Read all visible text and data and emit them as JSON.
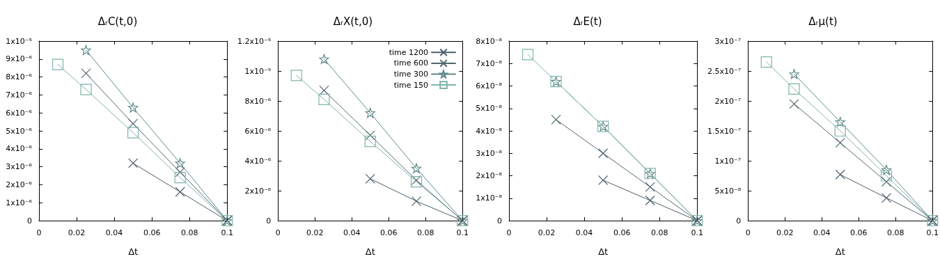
{
  "chart_data": [
    {
      "type": "line",
      "title": "ΔᵣC(t,0)",
      "xlabel": "Δt",
      "xlim": [
        0,
        0.1
      ],
      "xticks": [
        0,
        0.02,
        0.04,
        0.06,
        0.08,
        0.1
      ],
      "ylim": [
        0,
        1e-05
      ],
      "yticks": [
        {
          "value": 0,
          "label": "0"
        },
        {
          "value": 1e-06,
          "label": "1x10⁻⁶"
        },
        {
          "value": 2e-06,
          "label": "2x10⁻⁶"
        },
        {
          "value": 3e-06,
          "label": "3x10⁻⁶"
        },
        {
          "value": 4e-06,
          "label": "4x10⁻⁶"
        },
        {
          "value": 5e-06,
          "label": "5x10⁻⁶"
        },
        {
          "value": 6e-06,
          "label": "6x10⁻⁶"
        },
        {
          "value": 7e-06,
          "label": "7x10⁻⁶"
        },
        {
          "value": 8e-06,
          "label": "8x10⁻⁶"
        },
        {
          "value": 9e-06,
          "label": "9x10⁻⁶"
        },
        {
          "value": 1e-05,
          "label": "1x10⁻⁵"
        }
      ],
      "grid": false,
      "series": [
        {
          "color": "#4b5d67",
          "marker": "cross",
          "x": [
            0.05,
            0.075,
            0.1
          ],
          "values": [
            3.2e-06,
            1.6e-06,
            0
          ]
        },
        {
          "color": "#52666e",
          "marker": "cross",
          "x": [
            0.025,
            0.05,
            0.075,
            0.1
          ],
          "values": [
            8.2e-06,
            5.4e-06,
            2.7e-06,
            0
          ]
        },
        {
          "color": "#5e8a88",
          "marker": "star",
          "x": [
            0.025,
            0.05,
            0.075,
            0.1
          ],
          "values": [
            9.5e-06,
            6.3e-06,
            3.2e-06,
            0
          ]
        },
        {
          "color": "#7fb3a9",
          "marker": "square",
          "x": [
            0.01,
            0.025,
            0.05,
            0.075,
            0.1
          ],
          "values": [
            8.7e-06,
            7.3e-06,
            4.9e-06,
            2.4e-06,
            0
          ]
        }
      ]
    },
    {
      "type": "line",
      "title": "ΔᵣX(t,0)",
      "xlabel": "Δt",
      "xlim": [
        0,
        0.1
      ],
      "xticks": [
        0,
        0.02,
        0.04,
        0.06,
        0.08,
        0.1
      ],
      "ylim": [
        0,
        1.2e-05
      ],
      "yticks": [
        {
          "value": 0,
          "label": "0"
        },
        {
          "value": 2e-06,
          "label": "2x10⁻⁶"
        },
        {
          "value": 4e-06,
          "label": "4x10⁻⁶"
        },
        {
          "value": 6e-06,
          "label": "6x10⁻⁶"
        },
        {
          "value": 8e-06,
          "label": "8x10⁻⁶"
        },
        {
          "value": 1e-05,
          "label": "1x10⁻⁵"
        },
        {
          "value": 1.2e-05,
          "label": "1.2x10⁻⁵"
        }
      ],
      "grid": false,
      "legend": "top right",
      "series": [
        {
          "name": "time 1200",
          "color": "#4b5d67",
          "marker": "cross",
          "x": [
            0.05,
            0.075,
            0.1
          ],
          "values": [
            2.8e-06,
            1.3e-06,
            0
          ]
        },
        {
          "name": "time 600",
          "color": "#52666e",
          "marker": "cross",
          "x": [
            0.025,
            0.05,
            0.075,
            0.1
          ],
          "values": [
            8.7e-06,
            5.7e-06,
            2.7e-06,
            0
          ]
        },
        {
          "name": "time 300",
          "color": "#5e8a88",
          "marker": "star",
          "x": [
            0.025,
            0.05,
            0.075,
            0.1
          ],
          "values": [
            1.08e-05,
            7.2e-06,
            3.5e-06,
            0
          ]
        },
        {
          "name": "time 150",
          "color": "#7fb3a9",
          "marker": "square",
          "x": [
            0.01,
            0.025,
            0.05,
            0.075,
            0.1
          ],
          "values": [
            9.7e-06,
            8.1e-06,
            5.3e-06,
            2.6e-06,
            0
          ]
        }
      ]
    },
    {
      "type": "line",
      "title": "ΔᵣE(t)",
      "xlabel": "Δt",
      "xlim": [
        0,
        0.1
      ],
      "xticks": [
        0,
        0.02,
        0.04,
        0.06,
        0.08,
        0.1
      ],
      "ylim": [
        0,
        8e-08
      ],
      "yticks": [
        {
          "value": 0,
          "label": "0"
        },
        {
          "value": 1e-08,
          "label": "1x10⁻⁸"
        },
        {
          "value": 2e-08,
          "label": "2x10⁻⁸"
        },
        {
          "value": 3e-08,
          "label": "3x10⁻⁸"
        },
        {
          "value": 4e-08,
          "label": "4x10⁻⁸"
        },
        {
          "value": 5e-08,
          "label": "5x10⁻⁸"
        },
        {
          "value": 6e-08,
          "label": "6x10⁻⁸"
        },
        {
          "value": 7e-08,
          "label": "7x10⁻⁸"
        },
        {
          "value": 8e-08,
          "label": "8x10⁻⁸"
        }
      ],
      "grid": false,
      "series": [
        {
          "color": "#4b5d67",
          "marker": "cross",
          "x": [
            0.05,
            0.075,
            0.1
          ],
          "values": [
            1.8e-08,
            9e-09,
            0
          ]
        },
        {
          "color": "#52666e",
          "marker": "cross",
          "x": [
            0.025,
            0.05,
            0.075,
            0.1
          ],
          "values": [
            4.5e-08,
            3e-08,
            1.5e-08,
            0
          ]
        },
        {
          "color": "#5e8a88",
          "marker": "star",
          "x": [
            0.025,
            0.05,
            0.075,
            0.1
          ],
          "values": [
            6.2e-08,
            4.2e-08,
            2.1e-08,
            0
          ]
        },
        {
          "color": "#7fb3a9",
          "marker": "square",
          "x": [
            0.01,
            0.025,
            0.05,
            0.075,
            0.1
          ],
          "values": [
            7.4e-08,
            6.2e-08,
            4.2e-08,
            2.1e-08,
            0
          ]
        }
      ]
    },
    {
      "type": "line",
      "title": "Δᵣμ(t)",
      "xlabel": "Δt",
      "xlim": [
        0,
        0.1
      ],
      "xticks": [
        0,
        0.02,
        0.04,
        0.06,
        0.08,
        0.1
      ],
      "ylim": [
        0,
        3e-07
      ],
      "yticks": [
        {
          "value": 0,
          "label": "0"
        },
        {
          "value": 5e-08,
          "label": "5x10⁻⁸"
        },
        {
          "value": 1e-07,
          "label": "1x10⁻⁷"
        },
        {
          "value": 1.5e-07,
          "label": "1.5x10⁻⁷"
        },
        {
          "value": 2e-07,
          "label": "2x10⁻⁷"
        },
        {
          "value": 2.5e-07,
          "label": "2.5x10⁻⁷"
        },
        {
          "value": 3e-07,
          "label": "3x10⁻⁷"
        }
      ],
      "grid": false,
      "series": [
        {
          "color": "#4b5d67",
          "marker": "cross",
          "x": [
            0.05,
            0.075,
            0.1
          ],
          "values": [
            7.7e-08,
            3.8e-08,
            0
          ]
        },
        {
          "color": "#52666e",
          "marker": "cross",
          "x": [
            0.025,
            0.05,
            0.075,
            0.1
          ],
          "values": [
            1.95e-07,
            1.3e-07,
            6.5e-08,
            0
          ]
        },
        {
          "color": "#5e8a88",
          "marker": "star",
          "x": [
            0.025,
            0.05,
            0.075,
            0.1
          ],
          "values": [
            2.45e-07,
            1.65e-07,
            8.5e-08,
            0
          ]
        },
        {
          "color": "#7fb3a9",
          "marker": "square",
          "x": [
            0.01,
            0.025,
            0.05,
            0.075,
            0.1
          ],
          "values": [
            2.65e-07,
            2.2e-07,
            1.5e-07,
            7.5e-08,
            0
          ]
        }
      ]
    }
  ]
}
